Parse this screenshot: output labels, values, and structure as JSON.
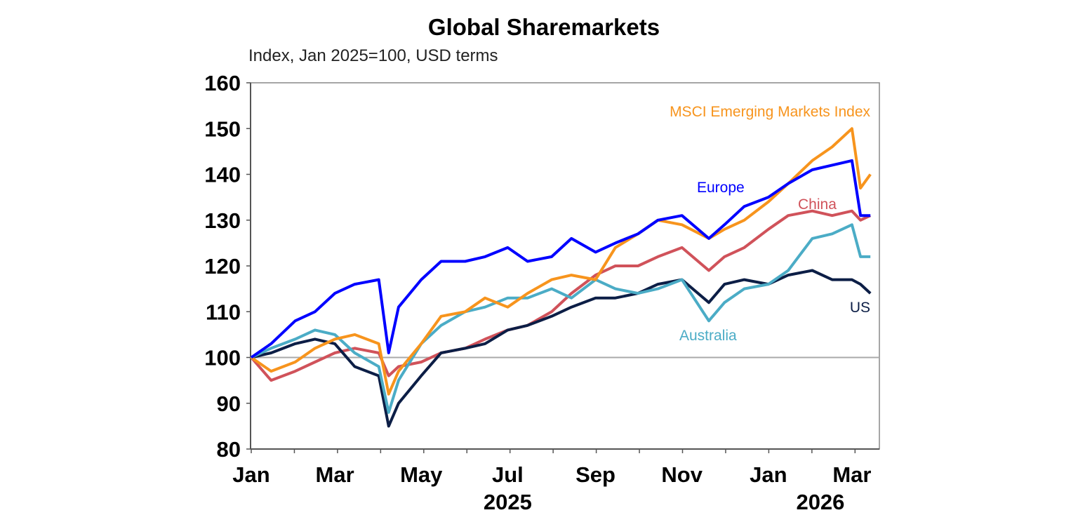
{
  "chart_data": {
    "type": "line",
    "title": "Global Sharemarkets",
    "subtitle": "Index, Jan 2025=100, USD terms",
    "xlabel": "",
    "ylabel": "",
    "ylim": [
      80,
      160
    ],
    "yticks": [
      80,
      90,
      100,
      110,
      120,
      130,
      140,
      150,
      160
    ],
    "xlim": [
      "2025-01-01",
      "2026-03-20"
    ],
    "xtick_labels": [
      {
        "date": "2025-01-01",
        "label": "Jan"
      },
      {
        "date": "2025-03-01",
        "label": "Mar"
      },
      {
        "date": "2025-05-01",
        "label": "May"
      },
      {
        "date": "2025-07-01",
        "label": "Jul"
      },
      {
        "date": "2025-09-01",
        "label": "Sep"
      },
      {
        "date": "2025-11-01",
        "label": "Nov"
      },
      {
        "date": "2026-01-01",
        "label": "Jan"
      },
      {
        "date": "2026-03-01",
        "label": "Mar"
      }
    ],
    "year_labels": [
      {
        "date": "2025-07-01",
        "label": "2025"
      },
      {
        "date": "2026-03-01",
        "label": "2026"
      }
    ],
    "reference_line": 100,
    "grid": false,
    "x": [
      "2025-01-01",
      "2025-01-15",
      "2025-02-01",
      "2025-02-15",
      "2025-03-01",
      "2025-03-15",
      "2025-04-01",
      "2025-04-08",
      "2025-04-15",
      "2025-05-01",
      "2025-05-15",
      "2025-06-01",
      "2025-06-15",
      "2025-07-01",
      "2025-07-15",
      "2025-08-01",
      "2025-08-15",
      "2025-09-01",
      "2025-09-15",
      "2025-10-01",
      "2025-10-15",
      "2025-11-01",
      "2025-11-20",
      "2025-12-01",
      "2025-12-15",
      "2026-01-01",
      "2026-01-15",
      "2026-02-01",
      "2026-02-15",
      "2026-03-01",
      "2026-03-07",
      "2026-03-14"
    ],
    "series": [
      {
        "name": "Europe",
        "color": "#0000ff",
        "values": [
          100,
          103,
          108,
          110,
          114,
          116,
          117,
          101,
          111,
          117,
          121,
          121,
          122,
          124,
          121,
          122,
          126,
          123,
          125,
          127,
          130,
          131,
          126,
          129,
          133,
          135,
          138,
          141,
          142,
          143,
          131,
          131
        ]
      },
      {
        "name": "MSCI Emerging Markets Index",
        "color": "#f7941d",
        "values": [
          100,
          97,
          99,
          102,
          104,
          105,
          103,
          92,
          97,
          103,
          109,
          110,
          113,
          111,
          114,
          117,
          118,
          117,
          124,
          127,
          130,
          129,
          126,
          128,
          130,
          134,
          138,
          143,
          146,
          150,
          137,
          140
        ]
      },
      {
        "name": "China",
        "color": "#d0525a",
        "values": [
          100,
          95,
          97,
          99,
          101,
          102,
          101,
          96,
          98,
          99,
          101,
          102,
          104,
          106,
          107,
          110,
          114,
          118,
          120,
          120,
          122,
          124,
          119,
          122,
          124,
          128,
          131,
          132,
          131,
          132,
          130,
          131
        ]
      },
      {
        "name": "Australia",
        "color": "#4bacc6",
        "values": [
          100,
          102,
          104,
          106,
          105,
          101,
          98,
          88,
          95,
          103,
          107,
          110,
          111,
          113,
          113,
          115,
          113,
          117,
          115,
          114,
          115,
          117,
          108,
          112,
          115,
          116,
          119,
          126,
          127,
          129,
          122,
          122
        ]
      },
      {
        "name": "US",
        "color": "#0c1e46",
        "values": [
          100,
          101,
          103,
          104,
          103,
          98,
          96,
          85,
          90,
          96,
          101,
          102,
          103,
          106,
          107,
          109,
          111,
          113,
          113,
          114,
          116,
          117,
          112,
          116,
          117,
          116,
          118,
          119,
          117,
          117,
          116,
          114
        ]
      }
    ]
  }
}
